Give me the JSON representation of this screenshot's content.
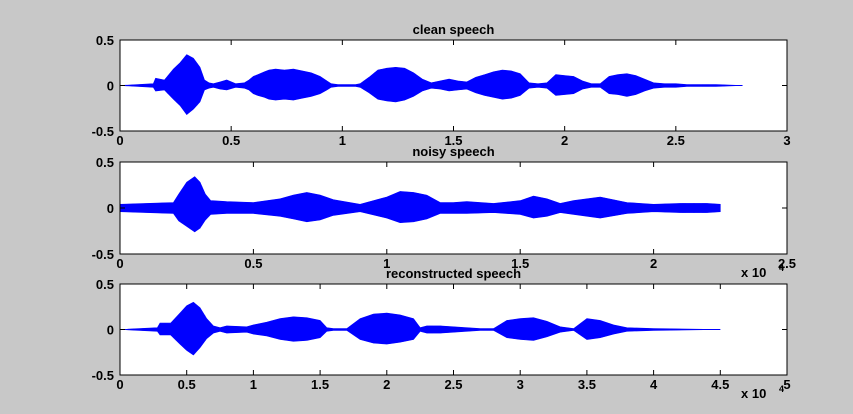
{
  "figure": {
    "background": "#c8c8c8",
    "axes_background": "#ffffff",
    "line_color": "#0000ff"
  },
  "chart_data": [
    {
      "type": "line",
      "title": "clean speech",
      "xlim": [
        0,
        3
      ],
      "ylim": [
        -0.5,
        0.5
      ],
      "x_ticks": [
        0,
        0.5,
        1,
        1.5,
        2,
        2.5,
        3
      ],
      "x_tick_labels": [
        "0",
        "0.5",
        "1",
        "1.5",
        "2",
        "2.5",
        "3"
      ],
      "y_ticks": [
        -0.5,
        0,
        0.5
      ],
      "y_tick_labels": [
        "-0.5",
        "0",
        "0.5"
      ],
      "exponent_label": "",
      "grid": false,
      "series": [
        {
          "color": "#0000ff",
          "x": [
            0,
            0.15,
            0.16,
            0.2,
            0.24,
            0.27,
            0.3,
            0.33,
            0.36,
            0.38,
            0.4,
            0.42,
            0.45,
            0.48,
            0.52,
            0.56,
            0.58,
            0.6,
            0.62,
            0.65,
            0.67,
            0.7,
            0.74,
            0.78,
            0.82,
            0.86,
            0.9,
            0.93,
            0.95,
            0.98,
            1.0,
            1.03,
            1.06,
            1.08,
            1.12,
            1.16,
            1.2,
            1.24,
            1.28,
            1.32,
            1.36,
            1.4,
            1.44,
            1.48,
            1.52,
            1.56,
            1.6,
            1.64,
            1.68,
            1.72,
            1.76,
            1.8,
            1.84,
            1.88,
            1.92,
            1.96,
            2.0,
            2.04,
            2.08,
            2.12,
            2.16,
            2.2,
            2.24,
            2.28,
            2.32,
            2.36,
            2.4,
            2.45,
            2.5,
            2.55,
            2.6,
            2.68,
            2.8
          ],
          "upper": [
            0,
            0.02,
            0.08,
            0.06,
            0.18,
            0.25,
            0.34,
            0.3,
            0.2,
            0.06,
            0.03,
            0.02,
            0.04,
            0.06,
            0.02,
            0.03,
            0.06,
            0.1,
            0.12,
            0.15,
            0.17,
            0.18,
            0.17,
            0.18,
            0.16,
            0.14,
            0.1,
            0.05,
            0.02,
            0.01,
            0.01,
            0.01,
            0.01,
            0.02,
            0.09,
            0.17,
            0.19,
            0.2,
            0.19,
            0.14,
            0.07,
            0.03,
            0.05,
            0.07,
            0.05,
            0.04,
            0.09,
            0.12,
            0.15,
            0.17,
            0.16,
            0.13,
            0.03,
            0.02,
            0.03,
            0.12,
            0.11,
            0.1,
            0.05,
            0.02,
            0.02,
            0.1,
            0.12,
            0.13,
            0.11,
            0.07,
            0.03,
            0.02,
            0.02,
            0.01,
            0.01,
            0.01,
            0
          ],
          "lower": [
            0,
            -0.02,
            -0.06,
            -0.05,
            -0.15,
            -0.22,
            -0.32,
            -0.26,
            -0.18,
            -0.05,
            -0.03,
            -0.02,
            -0.04,
            -0.05,
            -0.02,
            -0.03,
            -0.05,
            -0.09,
            -0.11,
            -0.13,
            -0.15,
            -0.16,
            -0.15,
            -0.16,
            -0.14,
            -0.12,
            -0.09,
            -0.05,
            -0.02,
            -0.01,
            -0.01,
            -0.01,
            -0.01,
            -0.02,
            -0.08,
            -0.15,
            -0.17,
            -0.18,
            -0.16,
            -0.12,
            -0.06,
            -0.03,
            -0.04,
            -0.06,
            -0.05,
            -0.04,
            -0.08,
            -0.11,
            -0.13,
            -0.15,
            -0.14,
            -0.11,
            -0.03,
            -0.02,
            -0.03,
            -0.11,
            -0.1,
            -0.09,
            -0.04,
            -0.02,
            -0.02,
            -0.09,
            -0.1,
            -0.12,
            -0.1,
            -0.06,
            -0.03,
            -0.02,
            -0.02,
            -0.01,
            -0.01,
            -0.01,
            0
          ]
        }
      ]
    },
    {
      "type": "line",
      "title": "noisy speech",
      "xlim": [
        0,
        25000
      ],
      "ylim": [
        -0.5,
        0.5
      ],
      "x_ticks": [
        0,
        5000,
        10000,
        15000,
        20000,
        25000
      ],
      "x_tick_labels": [
        "0",
        "0.5",
        "1",
        "1.5",
        "2",
        "2.5"
      ],
      "y_ticks": [
        -0.5,
        0,
        0.5
      ],
      "y_tick_labels": [
        "-0.5",
        "0",
        "0.5"
      ],
      "exponent_label": "x 10",
      "exponent_power": "4",
      "grid": false,
      "series": [
        {
          "color": "#0000ff",
          "x": [
            0,
            1000,
            2000,
            2200,
            2500,
            2800,
            3000,
            3200,
            3400,
            4000,
            5000,
            6000,
            6500,
            7000,
            7500,
            8000,
            9000,
            10000,
            10500,
            11000,
            11500,
            12000,
            12500,
            13000,
            14000,
            15000,
            15500,
            16000,
            16500,
            17000,
            18000,
            19000,
            19500,
            20000,
            21000,
            22000,
            22500
          ],
          "upper": [
            0.04,
            0.05,
            0.06,
            0.15,
            0.28,
            0.34,
            0.28,
            0.15,
            0.08,
            0.07,
            0.06,
            0.1,
            0.14,
            0.17,
            0.14,
            0.09,
            0.04,
            0.12,
            0.18,
            0.17,
            0.14,
            0.06,
            0.06,
            0.07,
            0.05,
            0.08,
            0.13,
            0.1,
            0.05,
            0.08,
            0.12,
            0.06,
            0.05,
            0.04,
            0.05,
            0.05,
            0.04
          ],
          "lower": [
            -0.04,
            -0.05,
            -0.06,
            -0.14,
            -0.2,
            -0.26,
            -0.22,
            -0.13,
            -0.07,
            -0.06,
            -0.06,
            -0.09,
            -0.12,
            -0.15,
            -0.13,
            -0.08,
            -0.04,
            -0.11,
            -0.16,
            -0.15,
            -0.12,
            -0.06,
            -0.06,
            -0.06,
            -0.05,
            -0.07,
            -0.11,
            -0.09,
            -0.05,
            -0.07,
            -0.11,
            -0.06,
            -0.05,
            -0.04,
            -0.05,
            -0.05,
            -0.04
          ]
        }
      ]
    },
    {
      "type": "line",
      "title": "reconstructed speech",
      "xlim": [
        0,
        50000
      ],
      "ylim": [
        -0.5,
        0.5
      ],
      "x_ticks": [
        0,
        5000,
        10000,
        15000,
        20000,
        25000,
        30000,
        35000,
        40000,
        45000,
        50000
      ],
      "x_tick_labels": [
        "0",
        "0.5",
        "1",
        "1.5",
        "2",
        "2.5",
        "3",
        "3.5",
        "4",
        "4.5",
        "5"
      ],
      "y_ticks": [
        -0.5,
        0,
        0.5
      ],
      "y_tick_labels": [
        "-0.5",
        "0",
        "0.5"
      ],
      "exponent_label": "x 10",
      "exponent_power": "4",
      "grid": false,
      "series": [
        {
          "color": "#0000ff",
          "x": [
            0,
            2800,
            3000,
            3800,
            4500,
            5000,
            5500,
            6000,
            6500,
            7000,
            7500,
            8000,
            9500,
            10000,
            11000,
            12000,
            13000,
            14000,
            15000,
            15500,
            16000,
            17000,
            18000,
            19000,
            20000,
            21000,
            22000,
            22500,
            23000,
            24000,
            25000,
            26000,
            27000,
            28000,
            29000,
            30000,
            31000,
            32000,
            33000,
            34000,
            35000,
            36000,
            37000,
            38000,
            40000,
            45000
          ],
          "upper": [
            0,
            0.02,
            0.07,
            0.07,
            0.18,
            0.26,
            0.3,
            0.24,
            0.12,
            0.04,
            0.02,
            0.04,
            0.03,
            0.05,
            0.08,
            0.12,
            0.14,
            0.13,
            0.1,
            0.02,
            0.01,
            0.01,
            0.12,
            0.17,
            0.18,
            0.16,
            0.12,
            0.02,
            0.04,
            0.04,
            0.03,
            0.02,
            0.01,
            0.01,
            0.1,
            0.12,
            0.13,
            0.09,
            0.03,
            0.01,
            0.12,
            0.1,
            0.05,
            0.02,
            0.01,
            0
          ],
          "lower": [
            0,
            -0.02,
            -0.06,
            -0.06,
            -0.16,
            -0.23,
            -0.28,
            -0.2,
            -0.1,
            -0.04,
            -0.02,
            -0.04,
            -0.03,
            -0.05,
            -0.07,
            -0.11,
            -0.13,
            -0.12,
            -0.09,
            -0.02,
            -0.01,
            -0.01,
            -0.11,
            -0.15,
            -0.16,
            -0.14,
            -0.11,
            -0.02,
            -0.04,
            -0.04,
            -0.03,
            -0.02,
            -0.01,
            -0.01,
            -0.09,
            -0.11,
            -0.12,
            -0.08,
            -0.03,
            -0.01,
            -0.11,
            -0.09,
            -0.05,
            -0.02,
            -0.01,
            0
          ]
        }
      ]
    }
  ]
}
